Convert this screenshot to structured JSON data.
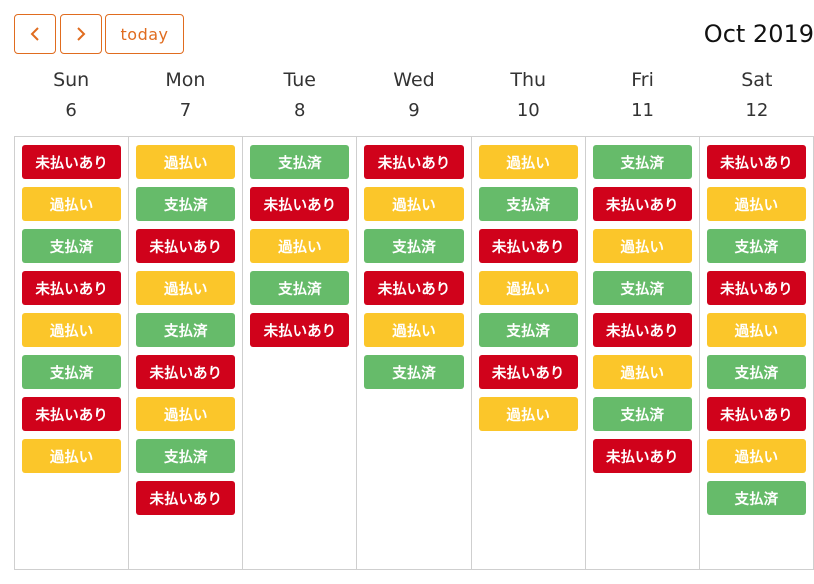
{
  "toolbar": {
    "today_label": "today",
    "title": "Oct 2019",
    "accent_color": "#e06c1f",
    "prev_icon": "chevron-left-icon",
    "next_icon": "chevron-right-icon"
  },
  "colors": {
    "unpaid": "#d0021b",
    "overdue": "#fbc62a",
    "paid": "#66bb6a"
  },
  "days": [
    {
      "name": "Sun",
      "date": "6",
      "events": [
        {
          "label": "未払いあり",
          "status": "unpaid"
        },
        {
          "label": "過払い",
          "status": "overdue"
        },
        {
          "label": "支払済",
          "status": "paid"
        },
        {
          "label": "未払いあり",
          "status": "unpaid"
        },
        {
          "label": "過払い",
          "status": "overdue"
        },
        {
          "label": "支払済",
          "status": "paid"
        },
        {
          "label": "未払いあり",
          "status": "unpaid"
        },
        {
          "label": "過払い",
          "status": "overdue"
        }
      ]
    },
    {
      "name": "Mon",
      "date": "7",
      "events": [
        {
          "label": "過払い",
          "status": "overdue"
        },
        {
          "label": "支払済",
          "status": "paid"
        },
        {
          "label": "未払いあり",
          "status": "unpaid"
        },
        {
          "label": "過払い",
          "status": "overdue"
        },
        {
          "label": "支払済",
          "status": "paid"
        },
        {
          "label": "未払いあり",
          "status": "unpaid"
        },
        {
          "label": "過払い",
          "status": "overdue"
        },
        {
          "label": "支払済",
          "status": "paid"
        },
        {
          "label": "未払いあり",
          "status": "unpaid"
        }
      ]
    },
    {
      "name": "Tue",
      "date": "8",
      "events": [
        {
          "label": "支払済",
          "status": "paid"
        },
        {
          "label": "未払いあり",
          "status": "unpaid"
        },
        {
          "label": "過払い",
          "status": "overdue"
        },
        {
          "label": "支払済",
          "status": "paid"
        },
        {
          "label": "未払いあり",
          "status": "unpaid"
        }
      ]
    },
    {
      "name": "Wed",
      "date": "9",
      "events": [
        {
          "label": "未払いあり",
          "status": "unpaid"
        },
        {
          "label": "過払い",
          "status": "overdue"
        },
        {
          "label": "支払済",
          "status": "paid"
        },
        {
          "label": "未払いあり",
          "status": "unpaid"
        },
        {
          "label": "過払い",
          "status": "overdue"
        },
        {
          "label": "支払済",
          "status": "paid"
        }
      ]
    },
    {
      "name": "Thu",
      "date": "10",
      "events": [
        {
          "label": "過払い",
          "status": "overdue"
        },
        {
          "label": "支払済",
          "status": "paid"
        },
        {
          "label": "未払いあり",
          "status": "unpaid"
        },
        {
          "label": "過払い",
          "status": "overdue"
        },
        {
          "label": "支払済",
          "status": "paid"
        },
        {
          "label": "未払いあり",
          "status": "unpaid"
        },
        {
          "label": "過払い",
          "status": "overdue"
        }
      ]
    },
    {
      "name": "Fri",
      "date": "11",
      "events": [
        {
          "label": "支払済",
          "status": "paid"
        },
        {
          "label": "未払いあり",
          "status": "unpaid"
        },
        {
          "label": "過払い",
          "status": "overdue"
        },
        {
          "label": "支払済",
          "status": "paid"
        },
        {
          "label": "未払いあり",
          "status": "unpaid"
        },
        {
          "label": "過払い",
          "status": "overdue"
        },
        {
          "label": "支払済",
          "status": "paid"
        },
        {
          "label": "未払いあり",
          "status": "unpaid"
        }
      ]
    },
    {
      "name": "Sat",
      "date": "12",
      "events": [
        {
          "label": "未払いあり",
          "status": "unpaid"
        },
        {
          "label": "過払い",
          "status": "overdue"
        },
        {
          "label": "支払済",
          "status": "paid"
        },
        {
          "label": "未払いあり",
          "status": "unpaid"
        },
        {
          "label": "過払い",
          "status": "overdue"
        },
        {
          "label": "支払済",
          "status": "paid"
        },
        {
          "label": "未払いあり",
          "status": "unpaid"
        },
        {
          "label": "過払い",
          "status": "overdue"
        },
        {
          "label": "支払済",
          "status": "paid"
        }
      ]
    }
  ]
}
